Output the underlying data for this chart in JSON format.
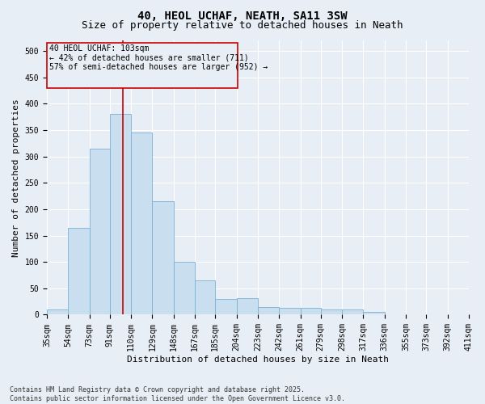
{
  "title": "40, HEOL UCHAF, NEATH, SA11 3SW",
  "subtitle": "Size of property relative to detached houses in Neath",
  "xlabel": "Distribution of detached houses by size in Neath",
  "ylabel": "Number of detached properties",
  "bar_color": "#c9dff0",
  "bar_edge_color": "#7ab0d4",
  "background_color": "#e8eef5",
  "grid_color": "#ffffff",
  "annotation_box_color": "#cc0000",
  "vline_color": "#cc0000",
  "vline_x_index": 3,
  "annotation_text": "40 HEOL UCHAF: 103sqm\n← 42% of detached houses are smaller (711)\n57% of semi-detached houses are larger (952) →",
  "footnote": "Contains HM Land Registry data © Crown copyright and database right 2025.\nContains public sector information licensed under the Open Government Licence v3.0.",
  "bins": [
    35,
    54,
    73,
    91,
    110,
    129,
    148,
    167,
    185,
    204,
    223,
    242,
    261,
    279,
    298,
    317,
    336,
    355,
    373,
    392,
    411
  ],
  "counts": [
    10,
    165,
    315,
    380,
    345,
    215,
    100,
    65,
    30,
    32,
    15,
    13,
    13,
    10,
    10,
    5,
    1,
    1,
    1,
    1
  ],
  "ylim": [
    0,
    520
  ],
  "yticks": [
    0,
    50,
    100,
    150,
    200,
    250,
    300,
    350,
    400,
    450,
    500
  ],
  "title_fontsize": 10,
  "subtitle_fontsize": 9,
  "xlabel_fontsize": 8,
  "ylabel_fontsize": 8,
  "tick_fontsize": 7,
  "annotation_fontsize": 7,
  "footnote_fontsize": 6
}
